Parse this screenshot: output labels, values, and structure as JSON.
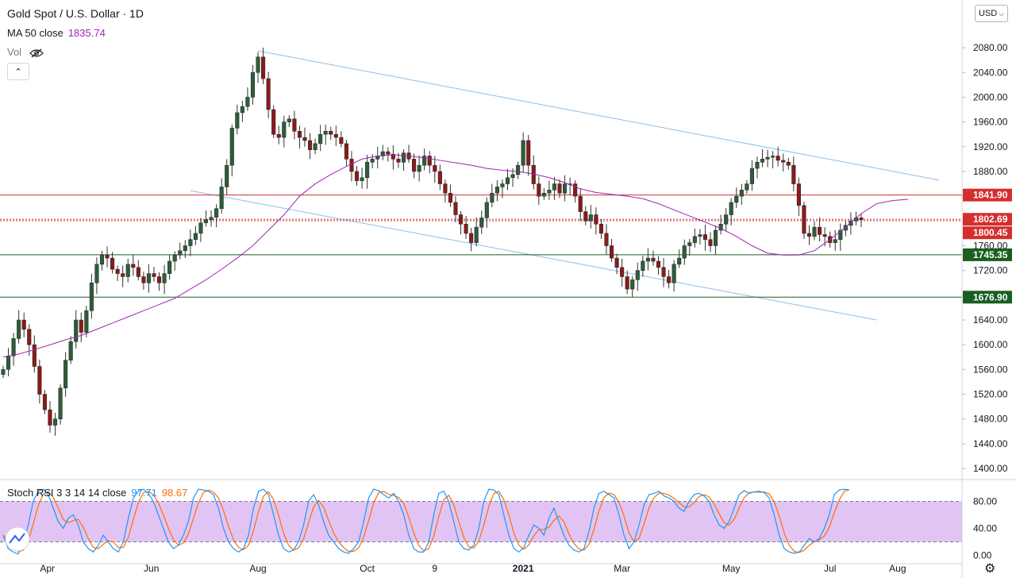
{
  "header": {
    "title": "Gold Spot / U.S. Dollar · 1D",
    "ma_label": "MA 50 close",
    "ma_value": "1835.74",
    "vol_label": "Vol",
    "currency": "USD",
    "currency_caret": "⌵",
    "collapse_glyph": "⌃",
    "settings_glyph": "⚙"
  },
  "colors": {
    "up": "#26a69a",
    "down": "#ef5350",
    "candle_up_body": "#2e5d3a",
    "candle_down_body": "#8b1a1a",
    "ma": "#9c27b0",
    "channel": "#90bde6",
    "resistance": "#d32f2f",
    "support": "#1b5e20",
    "stoch_k": "#2196f3",
    "stoch_d": "#ff6d00",
    "stoch_band": "#e1c4f4"
  },
  "chart_data": {
    "type": "candlestick",
    "y_axis": {
      "range": [
        1390,
        2130
      ],
      "ticks": [
        "2080.00",
        "2040.00",
        "2000.00",
        "1960.00",
        "1920.00",
        "1880.00",
        "1840.00",
        "1800.00",
        "1760.00",
        "1720.00",
        "1680.00",
        "1640.00",
        "1600.00",
        "1560.00",
        "1520.00",
        "1480.00",
        "1440.00",
        "1400.00"
      ]
    },
    "x_axis": {
      "labels": [
        "Apr",
        "Jun",
        "Aug",
        "Oct",
        "9",
        "2021",
        "Mar",
        "May",
        "Jul",
        "Aug"
      ],
      "label_index": [
        8.5,
        28.5,
        49,
        70,
        83,
        100,
        119,
        140,
        159,
        172
      ]
    },
    "close": [
      1560,
      1582,
      1610,
      1640,
      1625,
      1600,
      1565,
      1520,
      1495,
      1470,
      1480,
      1530,
      1575,
      1605,
      1640,
      1620,
      1655,
      1700,
      1730,
      1745,
      1740,
      1722,
      1715,
      1710,
      1730,
      1725,
      1710,
      1700,
      1715,
      1710,
      1700,
      1715,
      1735,
      1745,
      1752,
      1760,
      1770,
      1780,
      1797,
      1802,
      1806,
      1820,
      1855,
      1890,
      1950,
      1975,
      1985,
      2000,
      2040,
      2065,
      2030,
      1980,
      1940,
      1935,
      1960,
      1965,
      1945,
      1935,
      1930,
      1915,
      1925,
      1940,
      1945,
      1940,
      1935,
      1925,
      1900,
      1880,
      1865,
      1870,
      1895,
      1900,
      1905,
      1912,
      1908,
      1900,
      1895,
      1910,
      1900,
      1880,
      1890,
      1905,
      1890,
      1880,
      1860,
      1845,
      1830,
      1810,
      1795,
      1780,
      1765,
      1790,
      1805,
      1830,
      1845,
      1855,
      1860,
      1870,
      1875,
      1890,
      1930,
      1890,
      1860,
      1840,
      1845,
      1850,
      1860,
      1845,
      1860,
      1860,
      1840,
      1815,
      1800,
      1810,
      1795,
      1780,
      1760,
      1740,
      1725,
      1710,
      1690,
      1705,
      1720,
      1735,
      1740,
      1735,
      1725,
      1710,
      1700,
      1730,
      1740,
      1760,
      1765,
      1775,
      1778,
      1770,
      1760,
      1785,
      1795,
      1810,
      1830,
      1840,
      1850,
      1860,
      1885,
      1895,
      1900,
      1903,
      1905,
      1898,
      1895,
      1890,
      1860,
      1825,
      1780,
      1775,
      1790,
      1778,
      1775,
      1765,
      1770,
      1785,
      1793,
      1800,
      1805,
      1802
    ],
    "ma50": [
      1580,
      1585,
      1592,
      1600,
      1608,
      1615,
      1625,
      1635,
      1645,
      1655,
      1665,
      1675,
      1690,
      1705,
      1722,
      1740,
      1760,
      1785,
      1810,
      1840,
      1860,
      1875,
      1888,
      1900,
      1905,
      1907,
      1905,
      1902,
      1898,
      1894,
      1890,
      1885,
      1882,
      1880,
      1876,
      1870,
      1862,
      1852,
      1846,
      1843,
      1840,
      1836,
      1828,
      1818,
      1808,
      1798,
      1788,
      1775,
      1760,
      1748,
      1745,
      1745,
      1752,
      1770,
      1790,
      1812,
      1828,
      1833,
      1835
    ],
    "ma50_start_index": 0,
    "ma50_step": 3,
    "channel_upper": {
      "from": [
        49,
        2075
      ],
      "to": [
        180,
        1866
      ]
    },
    "channel_lower": {
      "from": [
        36,
        1849
      ],
      "to": [
        168,
        1640
      ]
    },
    "levels": [
      {
        "value": 1841.9,
        "label": "1841.90",
        "kind": "resistance"
      },
      {
        "value": 1802.69,
        "label": "1802.69",
        "kind": "price"
      },
      {
        "value": 1800.45,
        "label": "1800.45",
        "kind": "price"
      },
      {
        "value": 1745.35,
        "label": "1745.35",
        "kind": "support"
      },
      {
        "value": 1676.9,
        "label": "1676.90",
        "kind": "support"
      }
    ],
    "stoch": {
      "label": "Stoch RSI 3 3 14 14 close",
      "k_value": "97.71",
      "d_value": "98.67",
      "range": [
        -10,
        110
      ],
      "band": [
        20,
        80
      ],
      "ticks": [
        "80.00",
        "40.00",
        "0.00"
      ],
      "k": [
        30,
        10,
        5,
        2,
        15,
        45,
        80,
        95,
        98,
        90,
        70,
        50,
        40,
        55,
        60,
        45,
        20,
        10,
        5,
        15,
        30,
        20,
        10,
        5,
        20,
        55,
        85,
        95,
        98,
        92,
        80,
        60,
        40,
        20,
        10,
        15,
        30,
        50,
        85,
        98,
        97,
        95,
        90,
        70,
        40,
        20,
        10,
        5,
        10,
        30,
        70,
        95,
        98,
        90,
        60,
        30,
        10,
        5,
        8,
        20,
        45,
        80,
        90,
        75,
        50,
        30,
        20,
        10,
        5,
        3,
        10,
        20,
        50,
        85,
        98,
        96,
        90,
        85,
        92,
        80,
        60,
        30,
        10,
        5,
        5,
        20,
        60,
        92,
        95,
        80,
        50,
        20,
        10,
        8,
        15,
        40,
        80,
        98,
        97,
        90,
        60,
        30,
        10,
        5,
        12,
        30,
        45,
        40,
        30,
        55,
        70,
        50,
        30,
        15,
        8,
        5,
        10,
        35,
        70,
        92,
        95,
        90,
        85,
        60,
        30,
        10,
        20,
        45,
        75,
        90,
        92,
        95,
        88,
        85,
        80,
        70,
        65,
        80,
        90,
        92,
        88,
        80,
        60,
        45,
        40,
        50,
        70,
        90,
        96,
        92,
        94,
        95,
        93,
        85,
        60,
        30,
        10,
        5,
        3,
        5,
        15,
        25,
        20,
        25,
        40,
        60,
        90,
        97,
        98,
        97
      ]
    }
  }
}
